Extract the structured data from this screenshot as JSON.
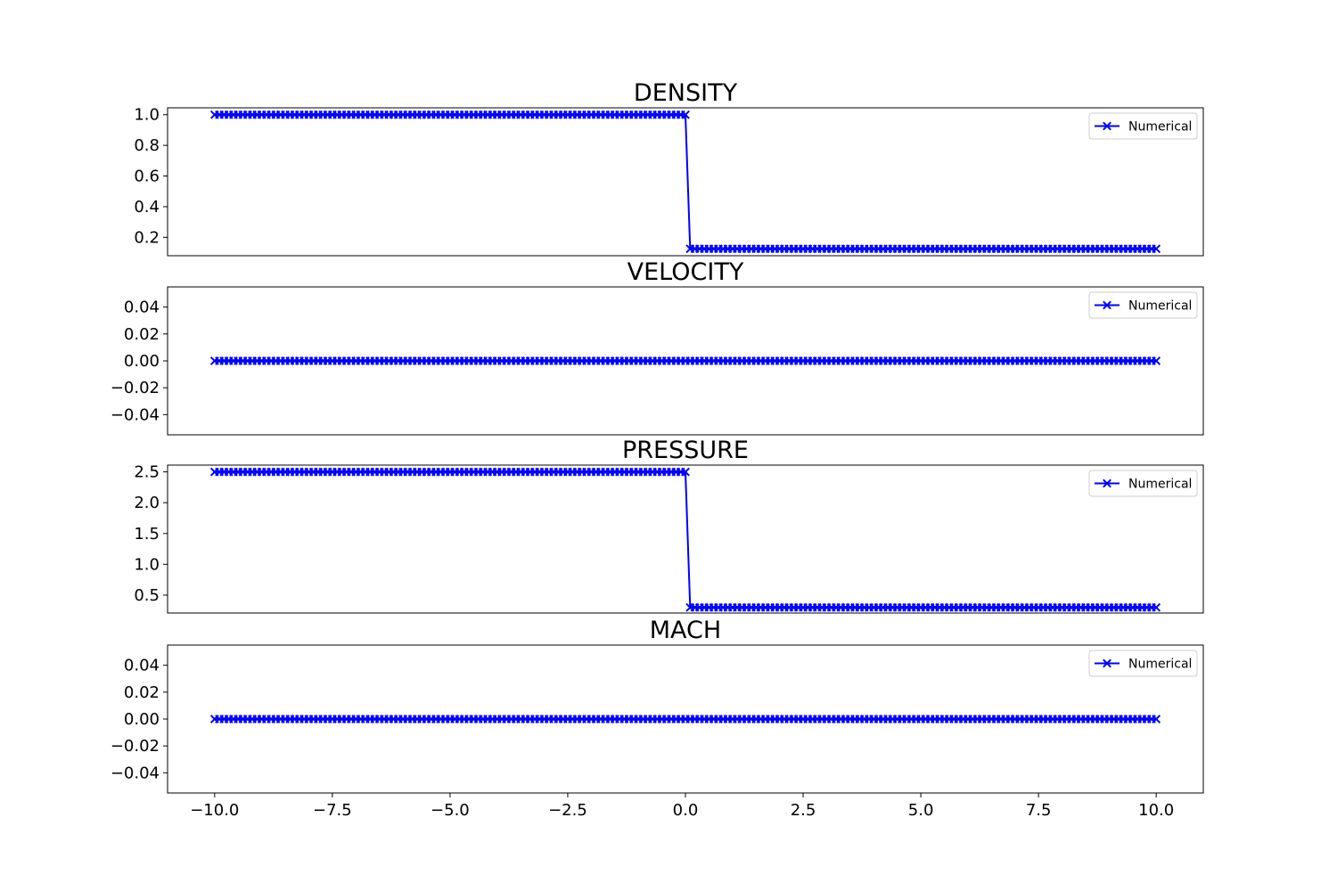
{
  "figure": {
    "background": "#ffffff",
    "line_color": "#0000ff",
    "axes_color": "#000000",
    "shared_xaxis": {
      "xlim": [
        -11.0,
        11.0
      ],
      "ticks": [
        -10.0,
        -7.5,
        -5.0,
        -2.5,
        0.0,
        2.5,
        5.0,
        7.5,
        10.0
      ],
      "tick_labels": [
        "−10.0",
        "−7.5",
        "−5.0",
        "−2.5",
        "0.0",
        "2.5",
        "5.0",
        "7.5",
        "10.0"
      ]
    }
  },
  "chart_data": [
    {
      "type": "line",
      "title": "DENSITY",
      "xlabel": "",
      "ylabel": "",
      "ylim": [
        0.08,
        1.045
      ],
      "yticks": [
        0.2,
        0.4,
        0.6,
        0.8,
        1.0
      ],
      "ytick_labels": [
        "0.2",
        "0.4",
        "0.6",
        "0.8",
        "1.0"
      ],
      "legend": {
        "placement": "upper right",
        "entries": [
          "Numerical"
        ]
      },
      "series": [
        {
          "name": "Numerical",
          "marker": "x",
          "x_range": [
            -10.0,
            10.0
          ],
          "points": 201,
          "piecewise": [
            {
              "x_from": -10.0,
              "x_to": 0.0,
              "y": 1.0
            },
            {
              "x_from": 0.0,
              "x_to": 10.0,
              "y": 0.125
            }
          ]
        }
      ]
    },
    {
      "type": "line",
      "title": "VELOCITY",
      "xlabel": "",
      "ylabel": "",
      "ylim": [
        -0.055,
        0.055
      ],
      "yticks": [
        -0.04,
        -0.02,
        0.0,
        0.02,
        0.04
      ],
      "ytick_labels": [
        "−0.04",
        "−0.02",
        "0.00",
        "0.02",
        "0.04"
      ],
      "legend": {
        "placement": "upper right",
        "entries": [
          "Numerical"
        ]
      },
      "series": [
        {
          "name": "Numerical",
          "marker": "x",
          "x_range": [
            -10.0,
            10.0
          ],
          "points": 201,
          "piecewise": [
            {
              "x_from": -10.0,
              "x_to": 10.0,
              "y": 0.0
            }
          ]
        }
      ]
    },
    {
      "type": "line",
      "title": "PRESSURE",
      "xlabel": "",
      "ylabel": "",
      "ylim": [
        0.21,
        2.61
      ],
      "yticks": [
        0.5,
        1.0,
        1.5,
        2.0,
        2.5
      ],
      "ytick_labels": [
        "0.5",
        "1.0",
        "1.5",
        "2.0",
        "2.5"
      ],
      "legend": {
        "placement": "upper right",
        "entries": [
          "Numerical"
        ]
      },
      "series": [
        {
          "name": "Numerical",
          "marker": "x",
          "x_range": [
            -10.0,
            10.0
          ],
          "points": 201,
          "piecewise": [
            {
              "x_from": -10.0,
              "x_to": 0.0,
              "y": 2.5
            },
            {
              "x_from": 0.0,
              "x_to": 10.0,
              "y": 0.3
            }
          ]
        }
      ]
    },
    {
      "type": "line",
      "title": "MACH",
      "xlabel": "",
      "ylabel": "",
      "ylim": [
        -0.055,
        0.055
      ],
      "yticks": [
        -0.04,
        -0.02,
        0.0,
        0.02,
        0.04
      ],
      "ytick_labels": [
        "−0.04",
        "−0.02",
        "0.00",
        "0.02",
        "0.04"
      ],
      "legend": {
        "placement": "upper right",
        "entries": [
          "Numerical"
        ]
      },
      "series": [
        {
          "name": "Numerical",
          "marker": "x",
          "x_range": [
            -10.0,
            10.0
          ],
          "points": 201,
          "piecewise": [
            {
              "x_from": -10.0,
              "x_to": 10.0,
              "y": 0.0
            }
          ]
        }
      ]
    }
  ]
}
